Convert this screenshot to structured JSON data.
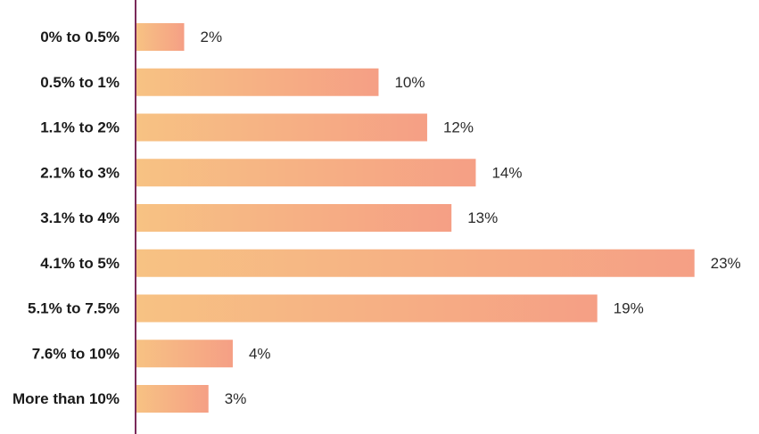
{
  "chart_data": {
    "type": "bar",
    "orientation": "horizontal",
    "categories": [
      "0% to 0.5%",
      "0.5% to 1%",
      "1.1% to 2%",
      "2.1% to 3%",
      "3.1% to 4%",
      "4.1% to 5%",
      "5.1% to 7.5%",
      "7.6% to 10%",
      "More than 10%"
    ],
    "values": [
      2,
      10,
      12,
      14,
      13,
      23,
      19,
      4,
      3
    ],
    "value_labels": [
      "2%",
      "10%",
      "12%",
      "14%",
      "13%",
      "23%",
      "19%",
      "4%",
      "3%"
    ],
    "value_unit": "%",
    "title": "",
    "xlabel": "",
    "ylabel": "",
    "xlim": [
      0,
      23.6
    ],
    "grid": false,
    "legend": "none"
  },
  "colors": {
    "bar_gradient_start": "#f7c283",
    "bar_gradient_end": "#f59f85",
    "axis_line": "#7a2a5a",
    "category_text": "#1a1a1a",
    "value_text": "#2a2a2a"
  }
}
